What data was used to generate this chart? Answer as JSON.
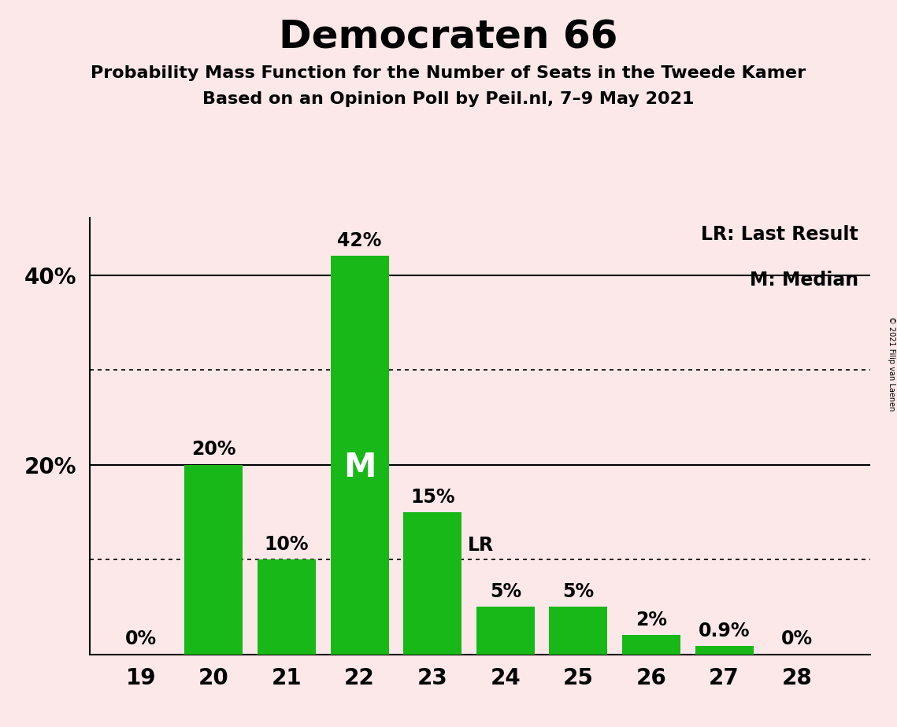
{
  "title": "Democraten 66",
  "subtitle1": "Probability Mass Function for the Number of Seats in the Tweede Kamer",
  "subtitle2": "Based on an Opinion Poll by Peil.nl, 7–9 May 2021",
  "copyright": "© 2021 Filip van Laenen",
  "categories": [
    19,
    20,
    21,
    22,
    23,
    24,
    25,
    26,
    27,
    28
  ],
  "values": [
    0,
    20,
    10,
    42,
    15,
    5,
    5,
    2,
    0.9,
    0
  ],
  "bar_color": "#18b818",
  "background_color": "#fce8e8",
  "labels": [
    "0%",
    "20%",
    "10%",
    "42%",
    "15%",
    "5%",
    "5%",
    "2%",
    "0.9%",
    "0%"
  ],
  "ylim": [
    0,
    46
  ],
  "dotted_lines": [
    10,
    30
  ],
  "solid_lines": [
    20,
    40
  ],
  "median_seat": 22,
  "median_label": "M",
  "lr_seat": 24,
  "lr_label": "LR",
  "legend_lr": "LR: Last Result",
  "legend_m": "M: Median",
  "ytick_show": [
    20,
    40
  ],
  "ytick_labels": [
    "20%",
    "40%"
  ]
}
